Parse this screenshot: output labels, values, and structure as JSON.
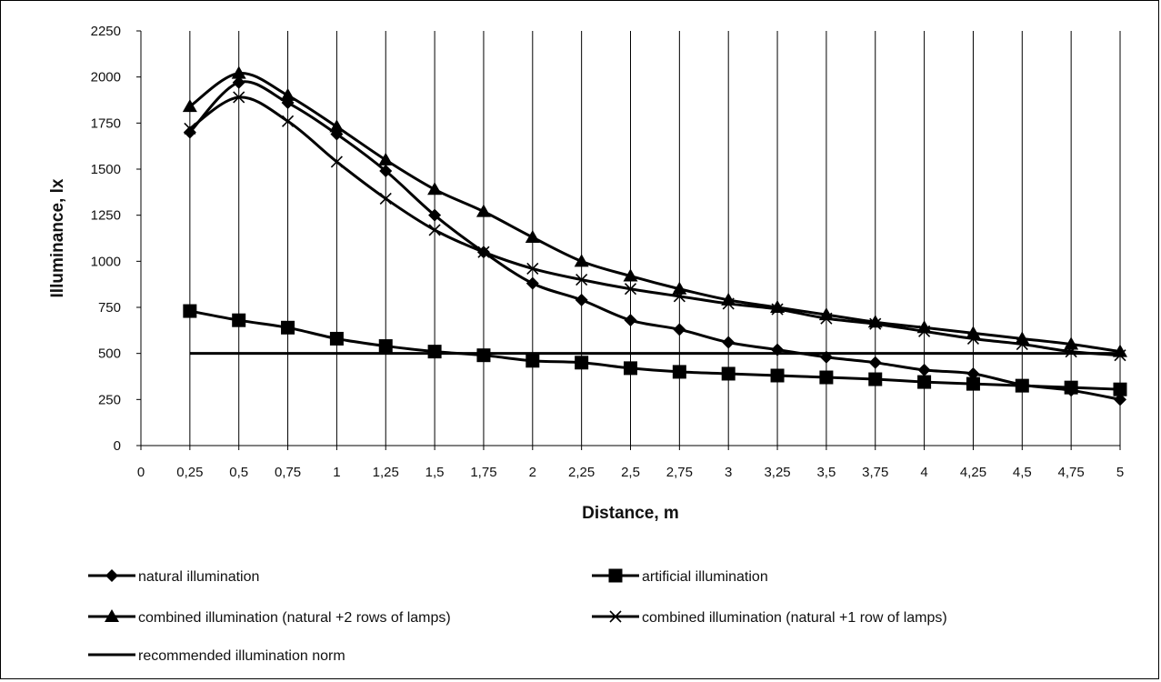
{
  "chart_data": {
    "type": "line",
    "xlabel": "Distance, m",
    "ylabel": "Illuminance, lx",
    "x": [
      0.25,
      0.5,
      0.75,
      1,
      1.25,
      1.5,
      1.75,
      2,
      2.25,
      2.5,
      2.75,
      3,
      3.25,
      3.5,
      3.75,
      4,
      4.25,
      4.5,
      4.75,
      5
    ],
    "x_tick_labels": [
      "0",
      "0,25",
      "0,5",
      "0,75",
      "1",
      "1,25",
      "1,5",
      "1,75",
      "2",
      "2,25",
      "2,5",
      "2,75",
      "3",
      "3,25",
      "3,5",
      "3,75",
      "4",
      "4,25",
      "4,5",
      "4,75",
      "5"
    ],
    "y_tick_labels": [
      "0",
      "250",
      "500",
      "750",
      "1000",
      "1250",
      "1500",
      "1750",
      "2000",
      "2250"
    ],
    "xlim": [
      0,
      5
    ],
    "ylim": [
      0,
      2250
    ],
    "grid": "vertical",
    "legend_position": "bottom",
    "series": [
      {
        "name": "natural illumination",
        "marker": "diamond",
        "values": [
          1700,
          1970,
          1860,
          1690,
          1490,
          1250,
          1050,
          880,
          790,
          680,
          630,
          560,
          520,
          480,
          450,
          410,
          390,
          330,
          300,
          250
        ]
      },
      {
        "name": "artificial illumination",
        "marker": "square",
        "values": [
          730,
          680,
          640,
          580,
          540,
          510,
          490,
          460,
          450,
          420,
          400,
          390,
          380,
          370,
          360,
          345,
          335,
          325,
          315,
          305
        ]
      },
      {
        "name": "combined illumination (natural +2 rows of lamps)",
        "marker": "triangle",
        "values": [
          1840,
          2020,
          1900,
          1730,
          1550,
          1390,
          1270,
          1130,
          1000,
          920,
          850,
          790,
          750,
          710,
          670,
          640,
          610,
          580,
          550,
          510
        ]
      },
      {
        "name": "combined illumination (natural +1 row of lamps)",
        "marker": "x",
        "values": [
          1720,
          1890,
          1760,
          1540,
          1340,
          1170,
          1050,
          960,
          900,
          850,
          810,
          770,
          740,
          690,
          660,
          620,
          580,
          550,
          510,
          490
        ]
      },
      {
        "name": "recommended illumination norm",
        "marker": "none",
        "values": [
          500,
          500,
          500,
          500,
          500,
          500,
          500,
          500,
          500,
          500,
          500,
          500,
          500,
          500,
          500,
          500,
          500,
          500,
          500,
          500
        ]
      }
    ]
  }
}
